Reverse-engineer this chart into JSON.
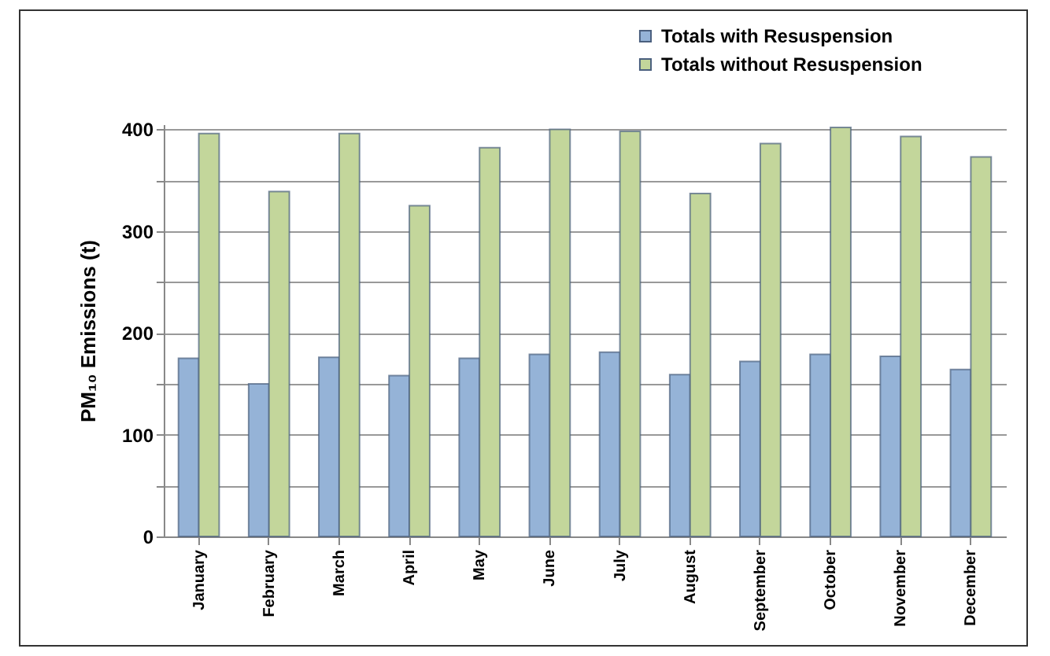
{
  "chart_data": {
    "type": "bar",
    "ylabel": "PM₁₀ Emissions (t)",
    "categories": [
      "January",
      "February",
      "March",
      "April",
      "May",
      "June",
      "July",
      "August",
      "September",
      "October",
      "November",
      "December"
    ],
    "series": [
      {
        "name": "Totals with Resuspension",
        "color": "#95b3d7",
        "values": [
          175,
          150,
          176,
          158,
          175,
          179,
          181,
          159,
          172,
          179,
          177,
          164
        ]
      },
      {
        "name": "Totals without Resuspension",
        "color": "#c3d69b",
        "values": [
          396,
          339,
          396,
          325,
          382,
          400,
          398,
          337,
          386,
          402,
          393,
          373
        ]
      }
    ],
    "ylim": [
      0,
      405
    ],
    "yticks": [
      0,
      {
        "value": 50,
        "label": null
      },
      100,
      {
        "value": 150,
        "label": null
      },
      200,
      {
        "value": 250,
        "label": null
      },
      300,
      {
        "value": 350,
        "label": null
      },
      400
    ],
    "grid": true,
    "legend": "top right"
  }
}
